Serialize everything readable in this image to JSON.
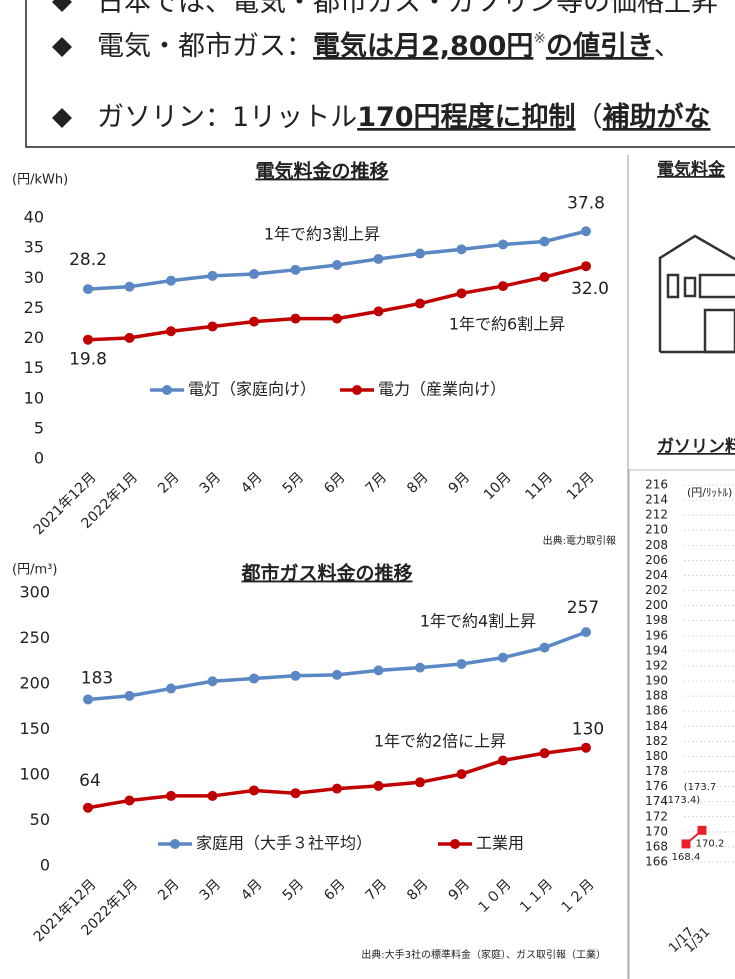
{
  "header": {
    "bullets": [
      {
        "parts": [
          "日本では、電気・都市ガス・ガソリン等の価格上昇"
        ]
      },
      {
        "parts": [
          "電気・都市ガス：",
          "電気は月2,800円",
          "※",
          "の値引き",
          "、"
        ]
      },
      {
        "parts": [
          "ガソリン：1リットル",
          "170円程度に抑制",
          "（",
          "補助がな"
        ]
      }
    ]
  },
  "side": {
    "electricity_heading": "電気料金",
    "gasoline_heading": "ガソリン料"
  },
  "chart_data": [
    {
      "type": "line",
      "title": "電気料金の推移",
      "y_label": "(円/kWh)",
      "source": "出典:電力取引報",
      "categories": [
        "2021年12月",
        "2022年1月",
        "2月",
        "3月",
        "4月",
        "5月",
        "6月",
        "7月",
        "8月",
        "9月",
        "10月",
        "11月",
        "12月"
      ],
      "series": [
        {
          "name": "電灯（家庭向け）",
          "color": "#5b87c5",
          "values": [
            28.2,
            28.6,
            29.6,
            30.4,
            30.7,
            31.4,
            32.2,
            33.2,
            34.1,
            34.8,
            35.6,
            36.1,
            37.8
          ],
          "value_labels": [
            "28.2",
            null,
            null,
            null,
            null,
            null,
            null,
            null,
            null,
            null,
            null,
            null,
            "37.8"
          ]
        },
        {
          "name": "電力（産業向け）",
          "color": "#c00000",
          "values": [
            19.8,
            20.1,
            21.2,
            22.0,
            22.8,
            23.3,
            23.3,
            24.5,
            25.8,
            27.5,
            28.7,
            30.2,
            32.0
          ],
          "value_labels": [
            "19.8",
            null,
            null,
            null,
            null,
            null,
            null,
            null,
            null,
            null,
            null,
            null,
            "32.0"
          ]
        }
      ],
      "annotations": [
        {
          "text": "1年で約3割上昇",
          "color": "#2e75b6"
        },
        {
          "text": "1年で約6割上昇",
          "color": "#c00000"
        }
      ],
      "ylim": [
        0,
        40
      ],
      "yticks": [
        0,
        5,
        10,
        15,
        20,
        25,
        30,
        35,
        40
      ]
    },
    {
      "type": "line",
      "title": "都市ガス料金の推移",
      "y_label": "(円/m³)",
      "source": "出典:大手3社の標準料金（家庭）、ガス取引報（工業）",
      "categories": [
        "2021年12月",
        "2022年1月",
        "2月",
        "3月",
        "4月",
        "5月",
        "6月",
        "7月",
        "8月",
        "9月",
        "１０月",
        "１１月",
        "１２月"
      ],
      "series": [
        {
          "name": "家庭用（大手３社平均）",
          "color": "#5b87c5",
          "values": [
            183,
            187,
            195,
            203,
            206,
            209,
            210,
            215,
            218,
            222,
            229,
            240,
            257
          ],
          "value_labels": [
            "183",
            null,
            null,
            null,
            null,
            null,
            null,
            null,
            null,
            null,
            null,
            null,
            "257"
          ]
        },
        {
          "name": "工業用",
          "color": "#c00000",
          "values": [
            64,
            72,
            77,
            77,
            83,
            80,
            85,
            88,
            92,
            101,
            116,
            124,
            130
          ],
          "value_labels": [
            "64",
            null,
            null,
            null,
            null,
            null,
            null,
            null,
            null,
            null,
            null,
            null,
            "130"
          ]
        }
      ],
      "annotations": [
        {
          "text": "1年で約4割上昇",
          "color": "#2e75b6"
        },
        {
          "text": "1年で約2倍に上昇",
          "color": "#c00000"
        }
      ],
      "ylim": [
        0,
        300
      ],
      "yticks": [
        0,
        50,
        100,
        150,
        200,
        250,
        300
      ]
    },
    {
      "type": "line",
      "y_label": "(円/ﾘｯﾄﾙ)",
      "categories": [
        "1/17",
        "1/31"
      ],
      "marker": "square",
      "series": [
        {
          "color": "#e8202a",
          "values": [
            168.4,
            170.2
          ],
          "value_labels": [
            "168.4",
            "170.2"
          ]
        }
      ],
      "annotations": [
        {
          "text": "(173.4)",
          "color": "#333333"
        },
        {
          "text": "(173.7",
          "color": "#333333"
        }
      ],
      "ylim": [
        166,
        216
      ],
      "yticks": [
        166,
        168,
        170,
        172,
        174,
        176,
        178,
        180,
        182,
        184,
        186,
        188,
        190,
        192,
        194,
        196,
        198,
        200,
        202,
        204,
        206,
        208,
        210,
        212,
        214,
        216
      ]
    }
  ]
}
